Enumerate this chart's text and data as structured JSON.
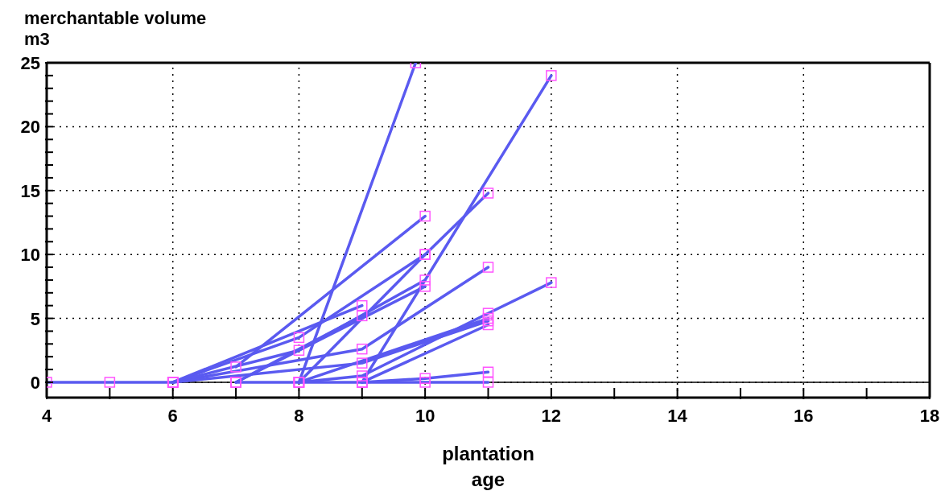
{
  "chart_data": {
    "type": "line",
    "xlabel": "plantation\nage",
    "ylabel": "merchantable volume\nm3",
    "xlim": [
      4,
      18
    ],
    "ylim": [
      -1.2,
      25
    ],
    "xticks": [
      4,
      {
        "value": 5,
        "label": null
      },
      6,
      {
        "value": 7,
        "label": null
      },
      8,
      {
        "value": 9,
        "label": null
      },
      10,
      {
        "value": 11,
        "label": null
      },
      12,
      {
        "value": 13,
        "label": null
      },
      14,
      {
        "value": 15,
        "label": null
      },
      16,
      {
        "value": 17,
        "label": null
      },
      18
    ],
    "yticks": [
      0,
      {
        "value": 1,
        "label": null
      },
      {
        "value": 2,
        "label": null
      },
      {
        "value": 3,
        "label": null
      },
      {
        "value": 4,
        "label": null
      },
      5,
      {
        "value": 6,
        "label": null
      },
      {
        "value": 7,
        "label": null
      },
      {
        "value": 8,
        "label": null
      },
      {
        "value": 9,
        "label": null
      },
      10,
      {
        "value": 11,
        "label": null
      },
      {
        "value": 12,
        "label": null
      },
      {
        "value": 13,
        "label": null
      },
      {
        "value": 14,
        "label": null
      },
      15,
      {
        "value": 16,
        "label": null
      },
      {
        "value": 17,
        "label": null
      },
      {
        "value": 18,
        "label": null
      },
      {
        "value": 19,
        "label": null
      },
      20,
      {
        "value": 21,
        "label": null
      },
      {
        "value": 22,
        "label": null
      },
      {
        "value": 23,
        "label": null
      },
      {
        "value": 24,
        "label": null
      },
      25
    ],
    "grid": true,
    "legend": false,
    "marker": "square",
    "line_style": "solid",
    "ref_lines": [
      {
        "axis": "y",
        "value": 0,
        "color": "#000000"
      }
    ],
    "series": [
      {
        "color": "#5a5af0",
        "x": [
          4,
          5,
          6
        ],
        "values": [
          0,
          0,
          0
        ]
      },
      {
        "color": "#5a5af0",
        "x": [
          8,
          9.85
        ],
        "values": [
          0,
          25
        ]
      },
      {
        "color": "#5a5af0",
        "x": [
          9,
          12
        ],
        "values": [
          0,
          24
        ]
      },
      {
        "color": "#5a5af0",
        "x": [
          6,
          8,
          10,
          11
        ],
        "values": [
          0,
          3.5,
          10,
          14.8
        ]
      },
      {
        "color": "#5a5af0",
        "x": [
          7,
          10
        ],
        "values": [
          1.2,
          13
        ]
      },
      {
        "color": "#5a5af0",
        "x": [
          6,
          9,
          11
        ],
        "values": [
          0,
          2.6,
          9
        ]
      },
      {
        "color": "#5a5af0",
        "x": [
          8,
          9,
          11,
          12
        ],
        "values": [
          0,
          0.5,
          5.4,
          7.8
        ]
      },
      {
        "color": "#5a5af0",
        "x": [
          6,
          8,
          10
        ],
        "values": [
          0,
          2.5,
          8
        ]
      },
      {
        "color": "#5a5af0",
        "x": [
          7,
          10
        ],
        "values": [
          0,
          7.5
        ]
      },
      {
        "color": "#5a5af0",
        "x": [
          6,
          9
        ],
        "values": [
          0,
          6
        ]
      },
      {
        "color": "#5a5af0",
        "x": [
          7,
          9
        ],
        "values": [
          0,
          5.2
        ]
      },
      {
        "color": "#5a5af0",
        "x": [
          8,
          10
        ],
        "values": [
          0,
          10
        ]
      },
      {
        "color": "#5a5af0",
        "x": [
          8,
          11
        ],
        "values": [
          0,
          5
        ]
      },
      {
        "color": "#5a5af0",
        "x": [
          9,
          11
        ],
        "values": [
          0,
          4.5
        ]
      },
      {
        "color": "#5a5af0",
        "x": [
          6,
          9,
          11
        ],
        "values": [
          0,
          1.5,
          4.8
        ]
      },
      {
        "color": "#5a5af0",
        "x": [
          9,
          10,
          11
        ],
        "values": [
          0,
          0.3,
          0.8
        ]
      },
      {
        "color": "#5a5af0",
        "x": [
          7,
          8,
          9,
          10,
          11
        ],
        "values": [
          0,
          0,
          0,
          0,
          0
        ]
      }
    ]
  }
}
